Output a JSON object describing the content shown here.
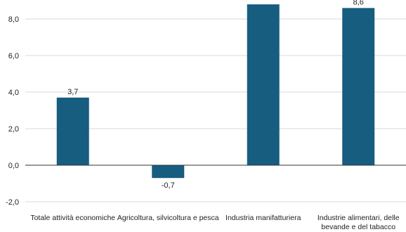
{
  "chart_data": {
    "type": "bar",
    "categories": [
      [
        "Totale attività economiche"
      ],
      [
        "Agricoltura, silvicoltura e pesca"
      ],
      [
        "Industria manifatturiera"
      ],
      [
        "Industrie alimentari, delle",
        "bevande e del tabacco"
      ]
    ],
    "values": [
      3.7,
      -0.7,
      8.8,
      8.6
    ],
    "data_labels": [
      "3,7",
      "-0,7",
      "",
      "8,6"
    ],
    "yticks": [
      -2,
      0,
      2,
      4,
      6,
      8
    ],
    "ytick_labels": [
      "-2,0",
      "0,0",
      "2,0",
      "4,0",
      "6,0",
      "8,0"
    ],
    "ylim": [
      -2,
      8.8
    ],
    "grid": true,
    "colors": {
      "bar": "#165d80",
      "grid": "#d9d9d9",
      "axis": "#333333"
    }
  }
}
